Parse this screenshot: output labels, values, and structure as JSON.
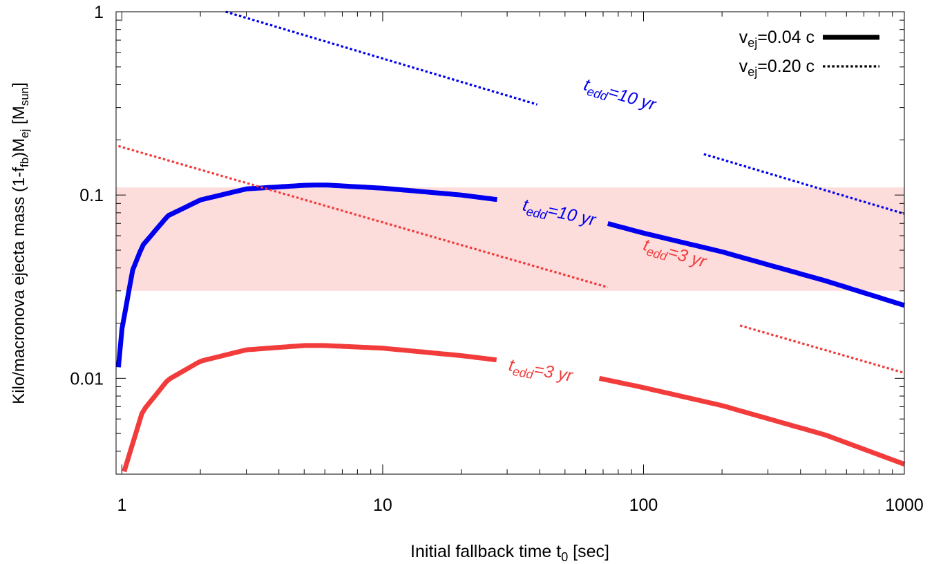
{
  "chart_data": {
    "type": "line",
    "x_scale": "log",
    "y_scale": "log",
    "xlim": [
      0.95,
      1000
    ],
    "ylim": [
      0.003,
      1
    ],
    "grid": false,
    "legend_position": "top-right",
    "xlabel": "Initial fallback time t",
    "xlabel_sub": "0",
    "xlabel_unit": " [sec]",
    "ylabel_parts": {
      "main": "Kilo/macronova ejecta mass (1-f",
      "sub1": "fb",
      "mid": ")M",
      "sub2": "ej",
      "tail": " [M",
      "sub3": "sun",
      "end": "]"
    },
    "x_ticks": [
      {
        "value": 1,
        "label": "1"
      },
      {
        "value": 10,
        "label": "10"
      },
      {
        "value": 100,
        "label": "100"
      },
      {
        "value": 1000,
        "label": "1000"
      }
    ],
    "y_ticks": [
      {
        "value": 0.01,
        "label": "0.01"
      },
      {
        "value": 0.1,
        "label": "0.1"
      },
      {
        "value": 1,
        "label": "1"
      }
    ],
    "shaded_band": {
      "ymin": 0.03,
      "ymax": 0.11,
      "color": "#fddcdc"
    },
    "legend": [
      {
        "label_main": "v",
        "label_sub": "ej",
        "label_rest": "=0.04 c",
        "style": "solid"
      },
      {
        "label_main": "v",
        "label_sub": "ej",
        "label_rest": "=0.20 c",
        "style": "dotted"
      }
    ],
    "series": [
      {
        "label_main": "t",
        "label_sub": "edd",
        "label_rest": "=10 yr",
        "style": "solid",
        "color": "#0000ee",
        "points": [
          [
            0.97,
            0.0115
          ],
          [
            1.0,
            0.0185
          ],
          [
            1.1,
            0.039
          ],
          [
            1.2,
            0.053
          ],
          [
            1.5,
            0.077
          ],
          [
            2,
            0.094
          ],
          [
            3,
            0.108
          ],
          [
            5,
            0.113
          ],
          [
            6,
            0.1135
          ],
          [
            10,
            0.109
          ],
          [
            20,
            0.1
          ],
          [
            30,
            0.093
          ],
          [
            50,
            0.081
          ],
          [
            70,
            0.071
          ],
          [
            100,
            0.062
          ],
          [
            200,
            0.049
          ],
          [
            500,
            0.034
          ],
          [
            1000,
            0.025
          ]
        ],
        "label_at": [
          47,
          0.075
        ],
        "gap": [
          28,
          72
        ]
      },
      {
        "label_main": "t",
        "label_sub": "edd",
        "label_rest": "=3 yr",
        "style": "solid",
        "color": "#f23c3c",
        "points": [
          [
            1.02,
            0.0031
          ],
          [
            1.2,
            0.0066
          ],
          [
            1.5,
            0.0098
          ],
          [
            2,
            0.0124
          ],
          [
            3,
            0.0143
          ],
          [
            5,
            0.0151
          ],
          [
            6,
            0.0151
          ],
          [
            10,
            0.0146
          ],
          [
            20,
            0.0133
          ],
          [
            30,
            0.0124
          ],
          [
            50,
            0.011
          ],
          [
            70,
            0.0099
          ],
          [
            100,
            0.0089
          ],
          [
            200,
            0.0071
          ],
          [
            500,
            0.0049
          ],
          [
            1000,
            0.0034
          ]
        ],
        "label_at": [
          40,
          0.0103
        ],
        "gap": [
          28,
          66
        ]
      },
      {
        "label_main": "t",
        "label_sub": "edd",
        "label_rest": "=10 yr",
        "style": "dotted",
        "color": "#0000ee",
        "points": [
          [
            2.5,
            1.0
          ],
          [
            1000,
            0.079
          ]
        ],
        "label_at": [
          80,
          0.33
        ],
        "gap": [
          40,
          170
        ]
      },
      {
        "label_main": "t",
        "label_sub": "edd",
        "label_rest": "=3 yr",
        "style": "dotted",
        "color": "#f23c3c",
        "points": [
          [
            0.97,
            0.185
          ],
          [
            1000,
            0.0107
          ]
        ],
        "label_at": [
          130,
          0.045
        ],
        "gap": [
          74,
          230
        ]
      }
    ]
  }
}
